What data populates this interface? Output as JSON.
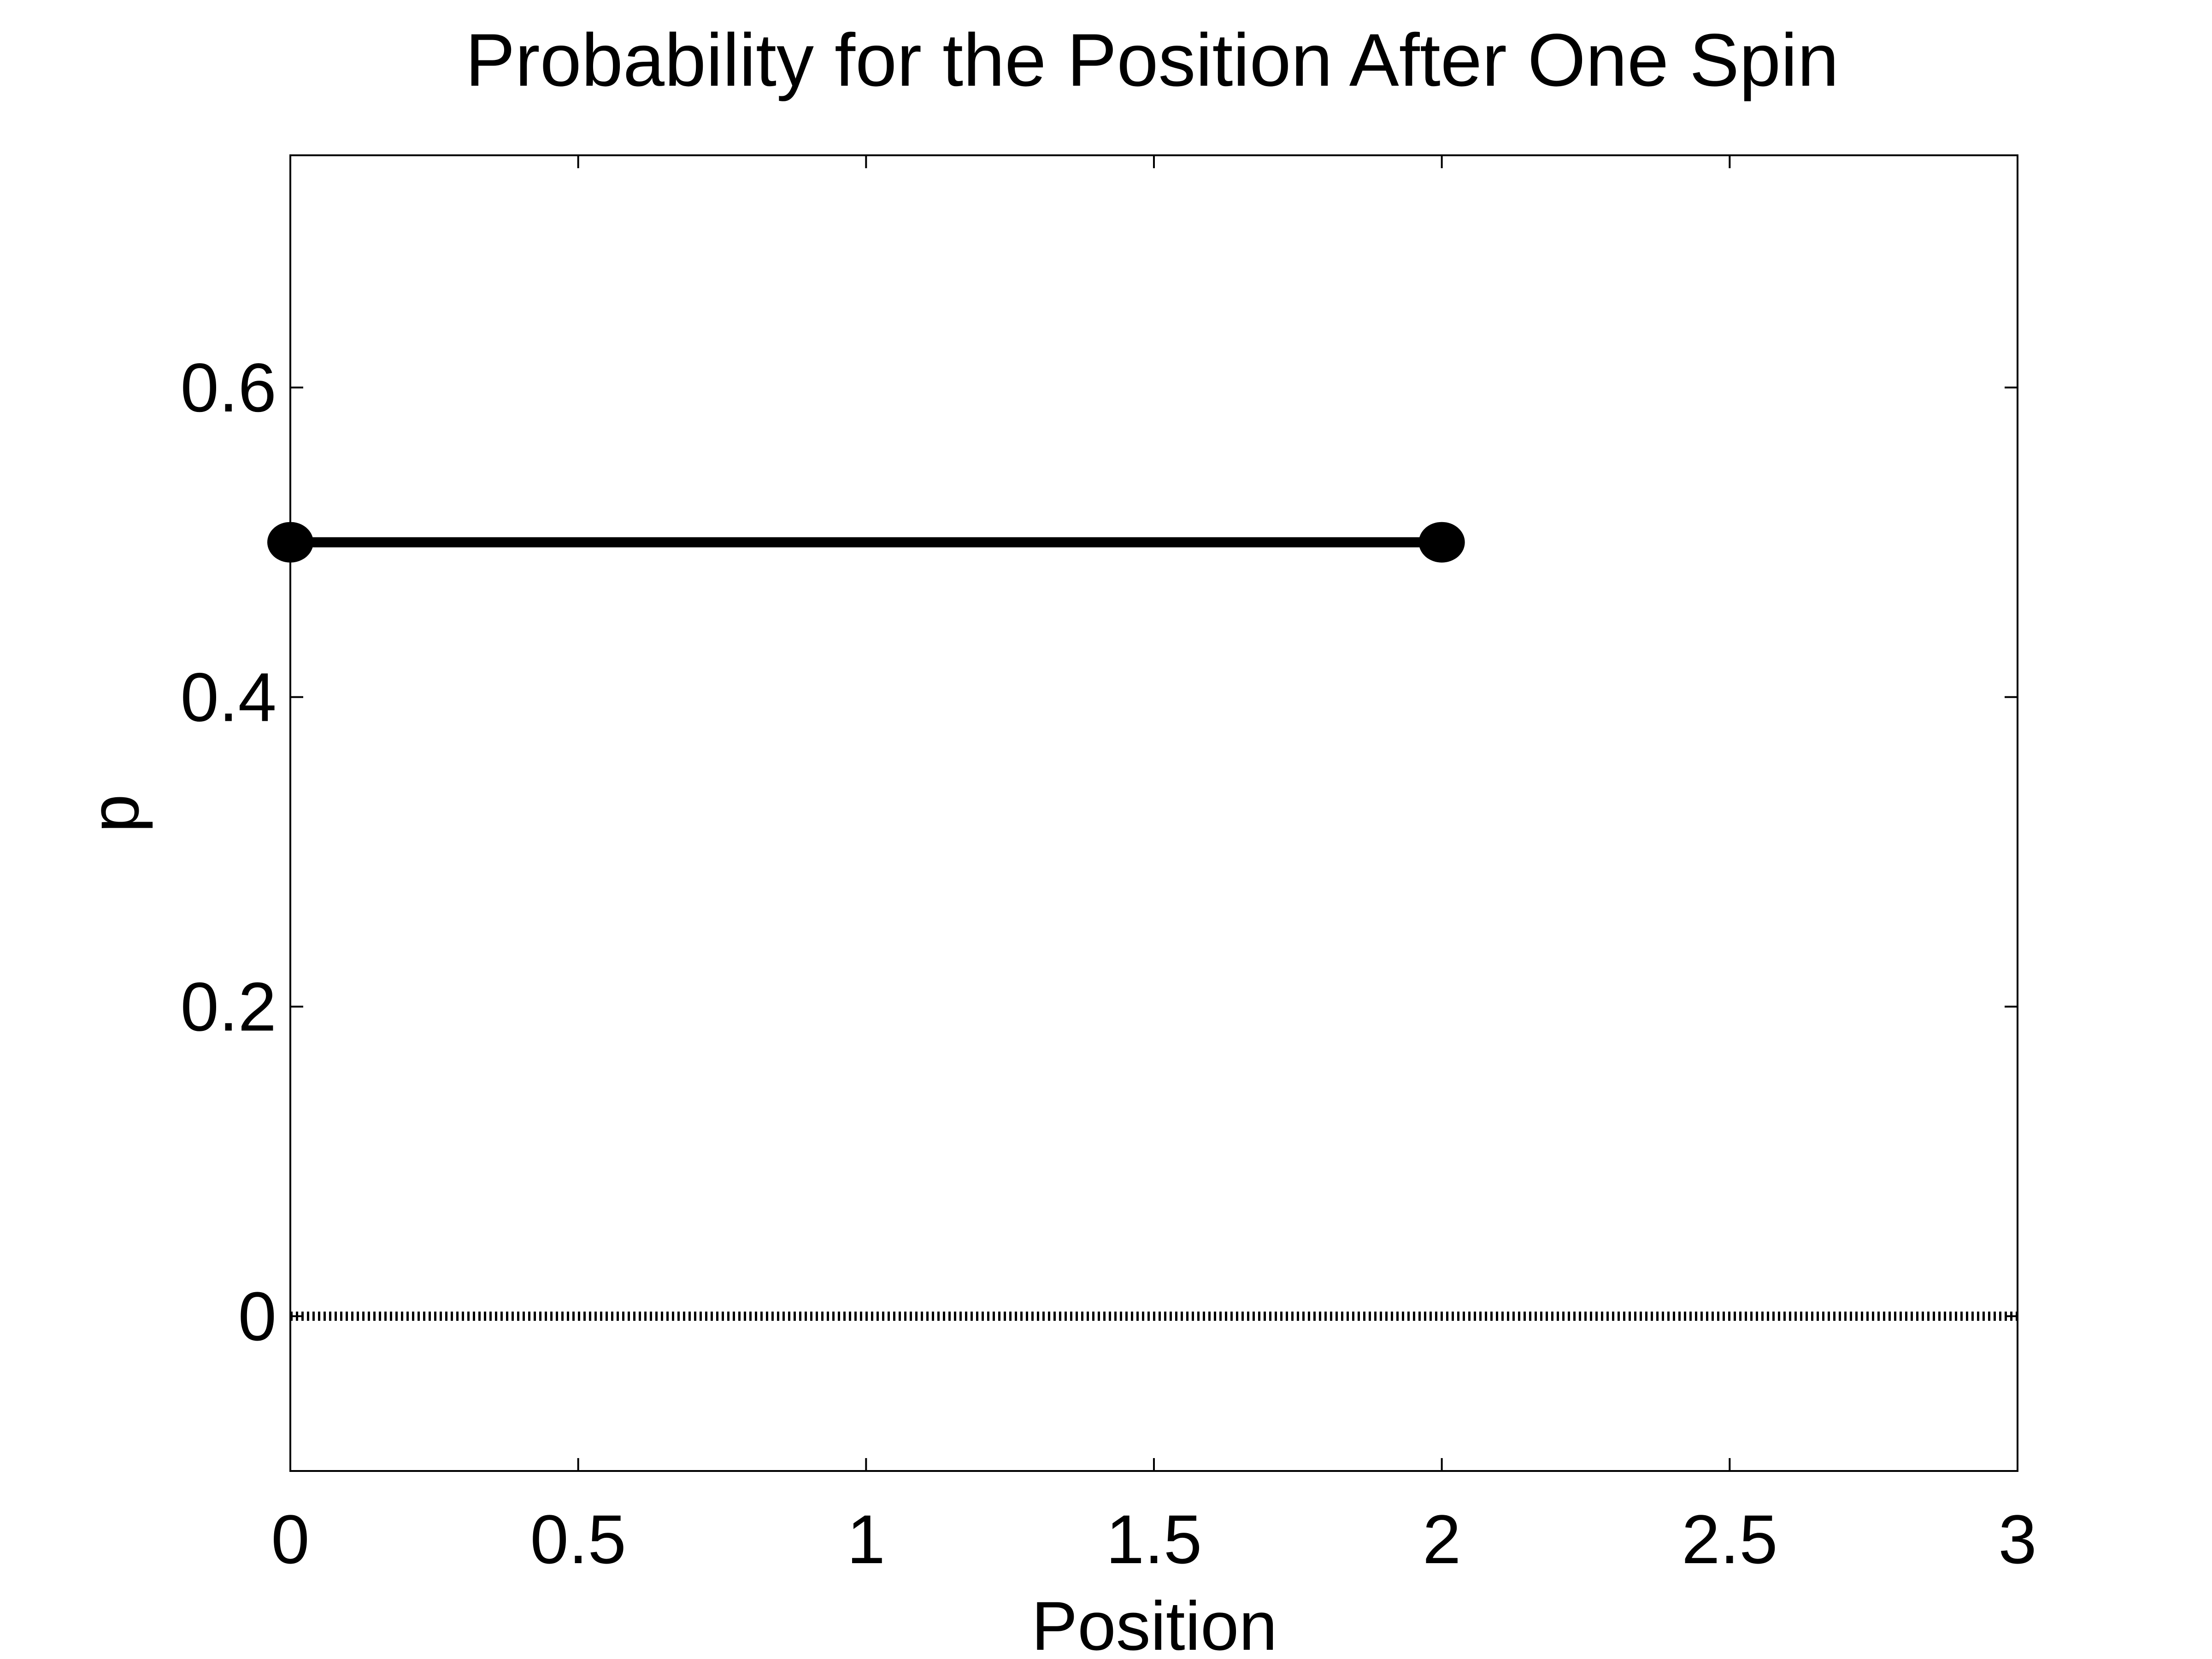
{
  "chart_data": {
    "type": "line",
    "title": "Probability for the Position After One  Spin",
    "xlabel": "Position",
    "ylabel": "p",
    "xlim": [
      0,
      3
    ],
    "ylim": [
      -0.1,
      0.75
    ],
    "x_ticks": [
      0,
      0.5,
      1,
      1.5,
      2,
      2.5,
      3
    ],
    "x_tick_labels": [
      "0",
      "0.5",
      "1",
      "1.5",
      "2",
      "2.5",
      "3"
    ],
    "y_ticks": [
      0,
      0.2,
      0.4,
      0.6
    ],
    "y_tick_labels": [
      "0",
      "0.2",
      "0.4",
      "0.6"
    ],
    "grid": false,
    "series": [
      {
        "style": "solid-with-markers",
        "color": "#000000",
        "x": [
          0,
          2
        ],
        "y": [
          0.5,
          0.5
        ]
      },
      {
        "style": "dotted",
        "color": "#000000",
        "x": [
          0,
          3
        ],
        "y": [
          0,
          0
        ]
      }
    ]
  }
}
